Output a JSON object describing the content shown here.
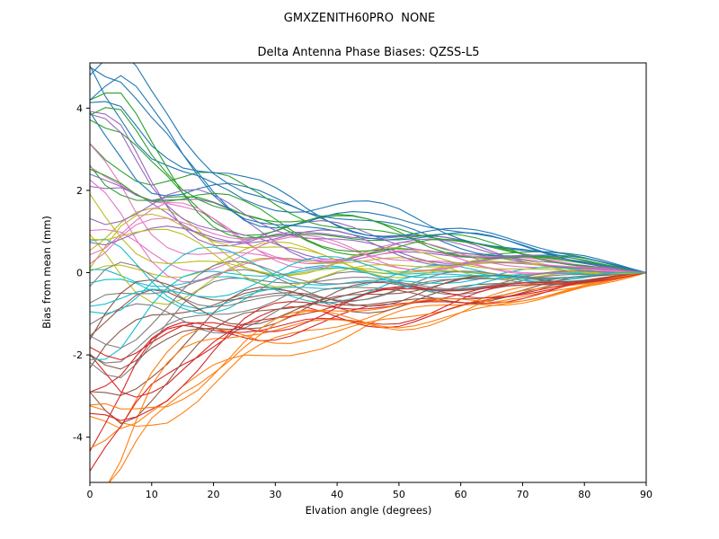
{
  "chart_data": {
    "type": "line",
    "title": "GMXZENITH60PRO  NONE",
    "subtitle": "Delta Antenna Phase Biases: QZSS-L5",
    "xlabel": "Elvation angle (degrees)",
    "ylabel": "Bias from mean (mm)",
    "xlim": [
      0,
      90
    ],
    "ylim": [
      -5.1,
      5.1
    ],
    "xticks": [
      0,
      10,
      20,
      30,
      40,
      50,
      60,
      70,
      80,
      90
    ],
    "yticks": [
      -4,
      -2,
      0,
      2,
      4
    ],
    "grid": false,
    "legend": "none",
    "x_step": 2.5,
    "palette": [
      "#1f77b4",
      "#ff7f0e",
      "#2ca02c",
      "#d62728",
      "#9467bd",
      "#8c564b",
      "#e377c2",
      "#7f7f7f",
      "#bcbd22",
      "#17becf"
    ],
    "envelope": [
      [
        0,
        5.0
      ],
      [
        5,
        4.6
      ],
      [
        10,
        3.6
      ],
      [
        15,
        2.9
      ],
      [
        20,
        2.4
      ],
      [
        25,
        2.0
      ],
      [
        30,
        1.75
      ],
      [
        35,
        1.55
      ],
      [
        40,
        1.45
      ],
      [
        45,
        1.35
      ],
      [
        50,
        1.25
      ],
      [
        55,
        1.1
      ],
      [
        60,
        0.95
      ],
      [
        65,
        0.8
      ],
      [
        70,
        0.65
      ],
      [
        75,
        0.5
      ],
      [
        80,
        0.35
      ],
      [
        85,
        0.18
      ],
      [
        90,
        0
      ]
    ],
    "series_starts": [
      4.8,
      -4.5,
      3.9,
      -3.2,
      2.7,
      -2.1,
      1.6,
      -1.2,
      0.8,
      -0.5,
      4.5,
      -4.8,
      3.5,
      -3.6,
      2.9,
      -2.5,
      1.9,
      -1.5,
      1.1,
      -0.7,
      4.2,
      -4.1,
      3.7,
      -3.9,
      2.4,
      -2.8,
      1.4,
      -1.8,
      0.6,
      -0.9,
      4.9,
      -4.3,
      3.3,
      -3.4,
      2.2,
      -2.3,
      1.7,
      -1.3,
      0.4,
      -0.3,
      4.6,
      -4.6,
      3.1,
      -2.9,
      2.6,
      -1.9,
      1.3,
      -1.0,
      0.9,
      -0.6,
      4.0,
      -3.8,
      2.8,
      -2.6,
      2.0,
      -1.6,
      1.0,
      -0.8,
      0.5,
      -0.2
    ],
    "wiggle": {
      "a1": 0.2,
      "f1": 0.11,
      "a2": 0.12,
      "f2": 0.23,
      "p1": 2.399,
      "p2": 1.37
    }
  }
}
